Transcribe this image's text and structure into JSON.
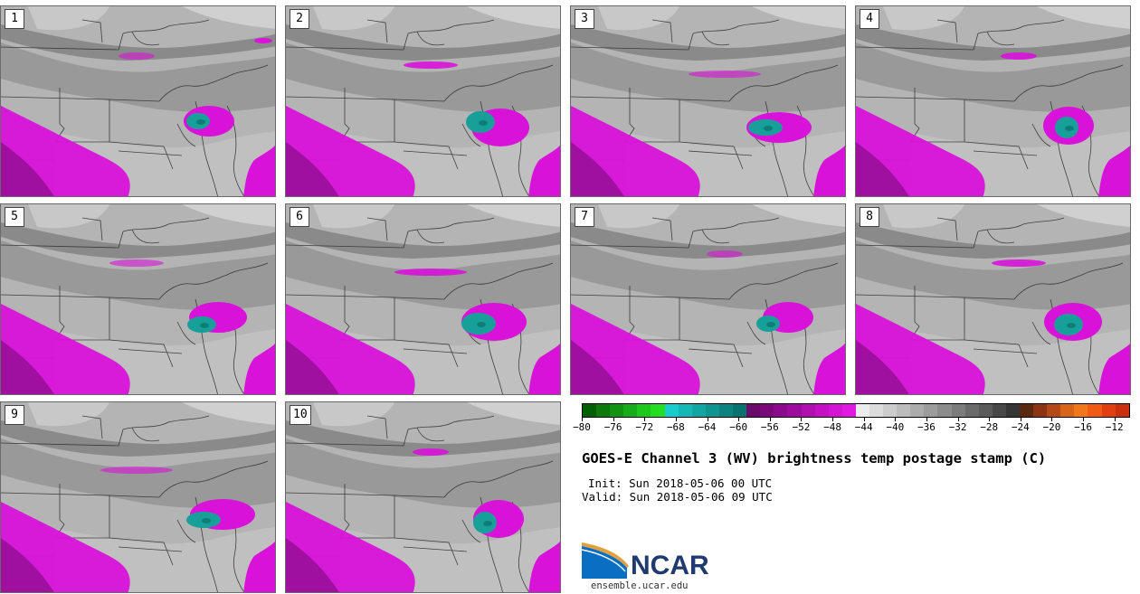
{
  "panels": [
    {
      "label": "1"
    },
    {
      "label": "2"
    },
    {
      "label": "3"
    },
    {
      "label": "4"
    },
    {
      "label": "5"
    },
    {
      "label": "6"
    },
    {
      "label": "7"
    },
    {
      "label": "8"
    },
    {
      "label": "9"
    },
    {
      "label": "10"
    }
  ],
  "colorbar": {
    "ticks": [
      "−80",
      "−76",
      "−72",
      "−68",
      "−64",
      "−60",
      "−56",
      "−52",
      "−48",
      "−44",
      "−40",
      "−36",
      "−32",
      "−28",
      "−24",
      "−20",
      "−16",
      "−12"
    ],
    "colors": [
      "#005f00",
      "#0b7a0b",
      "#129412",
      "#18ad18",
      "#1ec71e",
      "#22dd22",
      "#19cccc",
      "#15b8b4",
      "#12a6a2",
      "#0f9490",
      "#0d837f",
      "#0a726e",
      "#6a0a6a",
      "#7a0a7a",
      "#8c0a8c",
      "#9e0c9e",
      "#b010b0",
      "#c210c2",
      "#d414d4",
      "#e018e0",
      "#ececec",
      "#dcdcdc",
      "#cccccc",
      "#bcbcbc",
      "#acacac",
      "#9c9c9c",
      "#8c8c8c",
      "#7c7c7c",
      "#6a6a6a",
      "#5a5a5a",
      "#484848",
      "#363636",
      "#5a2a10",
      "#8c3414",
      "#b44a18",
      "#d86418",
      "#f07818",
      "#f05a14",
      "#e04010",
      "#c83010"
    ],
    "accent_magenta": "#d912d9",
    "accent_teal": "#17a09a"
  },
  "title": "GOES-E Channel 3 (WV) brightness temp postage stamp (C)",
  "init": "Init: Sun 2018-05-06 00 UTC",
  "valid": "Valid: Sun 2018-05-06 09 UTC",
  "logo": {
    "name": "NCAR",
    "url": "ensemble.ucar.edu"
  }
}
